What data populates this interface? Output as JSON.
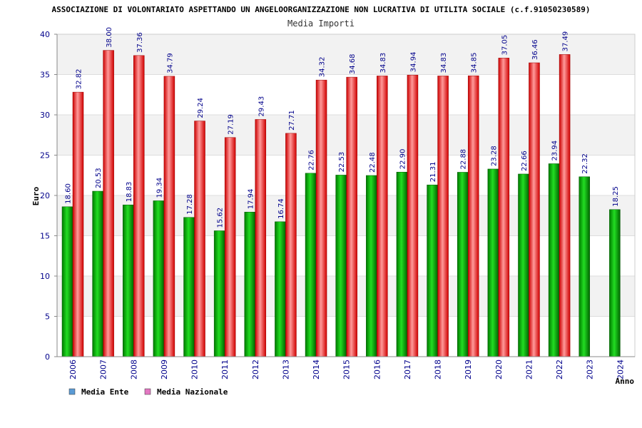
{
  "chart_data": {
    "type": "bar",
    "title": "ASSOCIAZIONE DI VOLONTARIATO ASPETTANDO UN ANGELOORGANIZZAZIONE NON LUCRATIVA DI UTILITA SOCIALE (c.f.91050230589)",
    "subtitle": "Media Importi",
    "xlabel": "Anno",
    "ylabel": "Euro",
    "ylim": [
      0,
      40
    ],
    "yticks": [
      "0",
      "5",
      "10",
      "15",
      "20",
      "25",
      "30",
      "35",
      "40"
    ],
    "categories": [
      "2006",
      "2007",
      "2008",
      "2009",
      "2010",
      "2011",
      "2012",
      "2013",
      "2014",
      "2015",
      "2016",
      "2017",
      "2018",
      "2019",
      "2020",
      "2021",
      "2022",
      "2023",
      "2024"
    ],
    "series": [
      {
        "name": "Media Ente",
        "color": "#00aa00",
        "legend_color": "#5b9bd5",
        "values": [
          18.6,
          20.53,
          18.83,
          19.34,
          17.28,
          15.62,
          17.94,
          16.74,
          22.76,
          22.53,
          22.48,
          22.9,
          21.31,
          22.88,
          23.28,
          22.66,
          23.94,
          22.32,
          18.25
        ],
        "labels": [
          "18.60",
          "20.53",
          "18.83",
          "19.34",
          "17.28",
          "15.62",
          "17.94",
          "16.74",
          "22.76",
          "22.53",
          "22.48",
          "22.90",
          "21.31",
          "22.88",
          "23.28",
          "22.66",
          "23.94",
          "22.32",
          "18.25"
        ]
      },
      {
        "name": "Media Nazionale",
        "color": "#ee2222",
        "legend_color": "#e377c2",
        "values": [
          32.82,
          38.0,
          37.36,
          34.79,
          29.24,
          27.19,
          29.43,
          27.71,
          34.32,
          34.68,
          34.83,
          34.94,
          34.83,
          34.85,
          37.05,
          36.46,
          37.49,
          null,
          null
        ],
        "labels": [
          "32.82",
          "38.00",
          "37.36",
          "34.79",
          "29.24",
          "27.19",
          "29.43",
          "27.71",
          "34.32",
          "34.68",
          "34.83",
          "34.94",
          "34.83",
          "34.85",
          "37.05",
          "36.46",
          "37.49",
          "",
          ""
        ]
      }
    ],
    "grid": true,
    "legend": "bottom-left"
  }
}
